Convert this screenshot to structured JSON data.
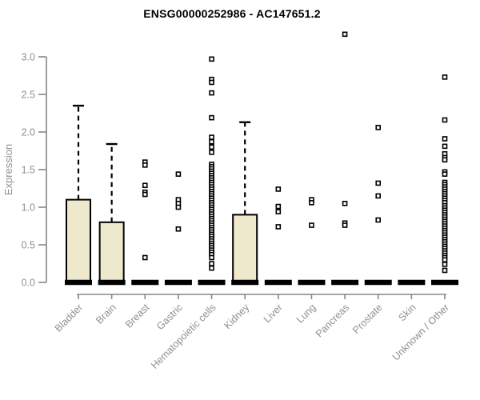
{
  "chart_data": {
    "type": "boxplot",
    "title": "ENSG00000252986 - AC147651.2",
    "ylabel": "Expression",
    "xlabel": "",
    "ylim": [
      0.0,
      3.0
    ],
    "yticks": [
      "0.0",
      "0.5",
      "1.0",
      "1.5",
      "2.0",
      "2.5",
      "3.0"
    ],
    "grid": false,
    "legend": "none",
    "colors": {
      "axis": "#878787",
      "tick_text": "#8f8f8f",
      "box_fill": "#eee8cd",
      "box_stroke": "#000000",
      "median": "#000000",
      "whisker": "#000000",
      "outlier_stroke": "#000000",
      "outlier_fill": "#ffffff",
      "title": "#000000",
      "background": "#ffffff"
    },
    "categories": [
      "Bladder",
      "Brain",
      "Breast",
      "Gastric",
      "Hematopoietic cells",
      "Kidney",
      "Liver",
      "Lung",
      "Pancreas",
      "Prostate",
      "Skin",
      "Unknown / Other"
    ],
    "series": [
      {
        "category": "Bladder",
        "q1": 0.0,
        "median": 0.0,
        "q3": 1.1,
        "whisker_low": 0.0,
        "whisker_high": 2.35,
        "outliers": []
      },
      {
        "category": "Brain",
        "q1": 0.0,
        "median": 0.0,
        "q3": 0.8,
        "whisker_low": 0.0,
        "whisker_high": 1.84,
        "outliers": []
      },
      {
        "category": "Breast",
        "q1": 0.0,
        "median": 0.0,
        "q3": 0.0,
        "whisker_low": 0.0,
        "whisker_high": 0.0,
        "outliers": [
          1.6,
          1.56,
          1.29,
          1.2,
          1.17,
          0.33
        ]
      },
      {
        "category": "Gastric",
        "q1": 0.0,
        "median": 0.0,
        "q3": 0.0,
        "whisker_low": 0.0,
        "whisker_high": 0.0,
        "outliers": [
          1.44,
          1.1,
          1.05,
          1.0,
          0.71
        ]
      },
      {
        "category": "Hematopoietic cells",
        "q1": 0.0,
        "median": 0.0,
        "q3": 0.0,
        "whisker_low": 0.0,
        "whisker_high": 0.0,
        "outliers": [
          2.97,
          2.7,
          2.66,
          2.52,
          2.19,
          1.93,
          1.87,
          1.8,
          1.73,
          1.57,
          1.54,
          1.51,
          1.48,
          1.45,
          1.42,
          1.39,
          1.36,
          1.33,
          1.3,
          1.27,
          1.24,
          1.21,
          1.18,
          1.15,
          1.12,
          1.09,
          1.06,
          1.03,
          1.0,
          0.97,
          0.94,
          0.91,
          0.88,
          0.85,
          0.82,
          0.79,
          0.76,
          0.73,
          0.7,
          0.67,
          0.64,
          0.61,
          0.58,
          0.55,
          0.52,
          0.49,
          0.46,
          0.43,
          0.4,
          0.37,
          0.33,
          0.25,
          0.19
        ]
      },
      {
        "category": "Kidney",
        "q1": 0.0,
        "median": 0.0,
        "q3": 0.9,
        "whisker_low": 0.0,
        "whisker_high": 2.13,
        "outliers": []
      },
      {
        "category": "Liver",
        "q1": 0.0,
        "median": 0.0,
        "q3": 0.0,
        "whisker_low": 0.0,
        "whisker_high": 0.0,
        "outliers": [
          1.24,
          1.01,
          0.94,
          0.74
        ]
      },
      {
        "category": "Lung",
        "q1": 0.0,
        "median": 0.0,
        "q3": 0.0,
        "whisker_low": 0.0,
        "whisker_high": 0.0,
        "outliers": [
          1.1,
          1.06,
          0.76
        ]
      },
      {
        "category": "Pancreas",
        "q1": 0.0,
        "median": 0.0,
        "q3": 0.0,
        "whisker_low": 0.0,
        "whisker_high": 0.0,
        "outliers": [
          3.3,
          1.05,
          0.79,
          0.76
        ]
      },
      {
        "category": "Prostate",
        "q1": 0.0,
        "median": 0.0,
        "q3": 0.0,
        "whisker_low": 0.0,
        "whisker_high": 0.0,
        "outliers": [
          2.06,
          1.32,
          1.15,
          0.83
        ]
      },
      {
        "category": "Skin",
        "q1": 0.0,
        "median": 0.0,
        "q3": 0.0,
        "whisker_low": 0.0,
        "whisker_high": 0.0,
        "outliers": []
      },
      {
        "category": "Unknown / Other",
        "q1": 0.0,
        "median": 0.0,
        "q3": 0.0,
        "whisker_low": 0.0,
        "whisker_high": 0.0,
        "outliers": [
          2.73,
          2.16,
          1.91,
          1.81,
          1.71,
          1.66,
          1.63,
          1.47,
          1.44,
          1.33,
          1.3,
          1.27,
          1.24,
          1.21,
          1.18,
          1.15,
          1.12,
          1.09,
          1.06,
          1.02,
          0.99,
          0.96,
          0.93,
          0.9,
          0.87,
          0.84,
          0.81,
          0.78,
          0.75,
          0.72,
          0.69,
          0.66,
          0.63,
          0.6,
          0.57,
          0.54,
          0.51,
          0.48,
          0.45,
          0.42,
          0.39,
          0.36,
          0.33,
          0.3,
          0.24,
          0.16
        ]
      }
    ]
  }
}
